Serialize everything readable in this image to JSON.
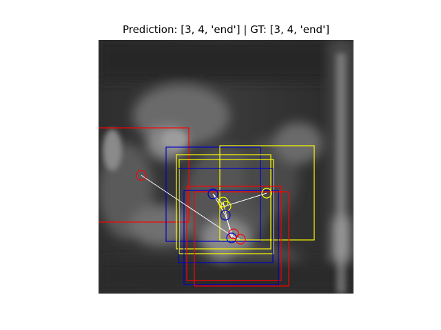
{
  "figure": {
    "title": "Prediction: [3, 4, 'end'] | GT: [3, 4, 'end']"
  },
  "overlay": {
    "colors": {
      "prediction_red": "#ff0000",
      "blue": "#0000cc",
      "yellow": "#ffff00",
      "connector_white": "#ffffff"
    }
  }
}
